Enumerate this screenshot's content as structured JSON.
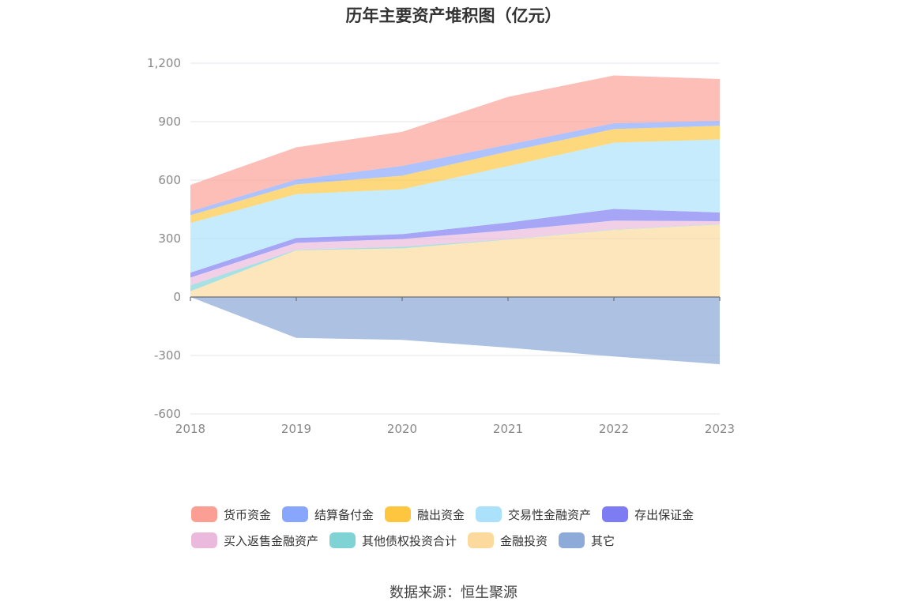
{
  "chart_data": {
    "type": "area",
    "title": "历年主要资产堆积图（亿元）",
    "source": "数据来源：恒生聚源",
    "categories": [
      "2018",
      "2019",
      "2020",
      "2021",
      "2022",
      "2023"
    ],
    "ylim": [
      -600,
      1200
    ],
    "yticks": [
      -600,
      -300,
      0,
      300,
      600,
      900,
      1200
    ],
    "ytick_labels": [
      "-600",
      "-300",
      "0",
      "300",
      "600",
      "900",
      "1,200"
    ],
    "stacked": true,
    "grid": true,
    "legend_position": "bottom",
    "negative_series": [
      {
        "name": "其它",
        "color": "#8eaad8",
        "values": [
          0,
          -210,
          -220,
          -260,
          -305,
          -345
        ]
      }
    ],
    "series": [
      {
        "name": "金融投资",
        "color": "#fcd99c",
        "values": [
          30,
          240,
          250,
          295,
          345,
          372
        ]
      },
      {
        "name": "其他债权投资合计",
        "color": "#7fd3d5",
        "values": [
          30,
          3,
          8,
          2,
          2,
          2
        ]
      },
      {
        "name": "买入返售金融资产",
        "color": "#ebb9dc",
        "values": [
          40,
          35,
          40,
          45,
          45,
          15
        ]
      },
      {
        "name": "存出保证金",
        "color": "#7e7cf2",
        "values": [
          25,
          25,
          25,
          40,
          60,
          45
        ]
      },
      {
        "name": "交易性金融资产",
        "color": "#abe1fa",
        "values": [
          255,
          225,
          230,
          290,
          340,
          375
        ]
      },
      {
        "name": "融出资金",
        "color": "#fec63f",
        "values": [
          40,
          50,
          70,
          75,
          70,
          70
        ]
      },
      {
        "name": "结算备付金",
        "color": "#88a6fc",
        "values": [
          20,
          25,
          50,
          35,
          30,
          25
        ]
      },
      {
        "name": "货币资金",
        "color": "#fb9f95",
        "values": [
          135,
          165,
          175,
          245,
          245,
          215
        ]
      }
    ],
    "legend": [
      [
        "货币资金",
        "结算备付金",
        "融出资金",
        "交易性金融资产",
        "存出保证金"
      ],
      [
        "买入返售金融资产",
        "其他债权投资合计",
        "金融投资",
        "其它"
      ]
    ]
  }
}
